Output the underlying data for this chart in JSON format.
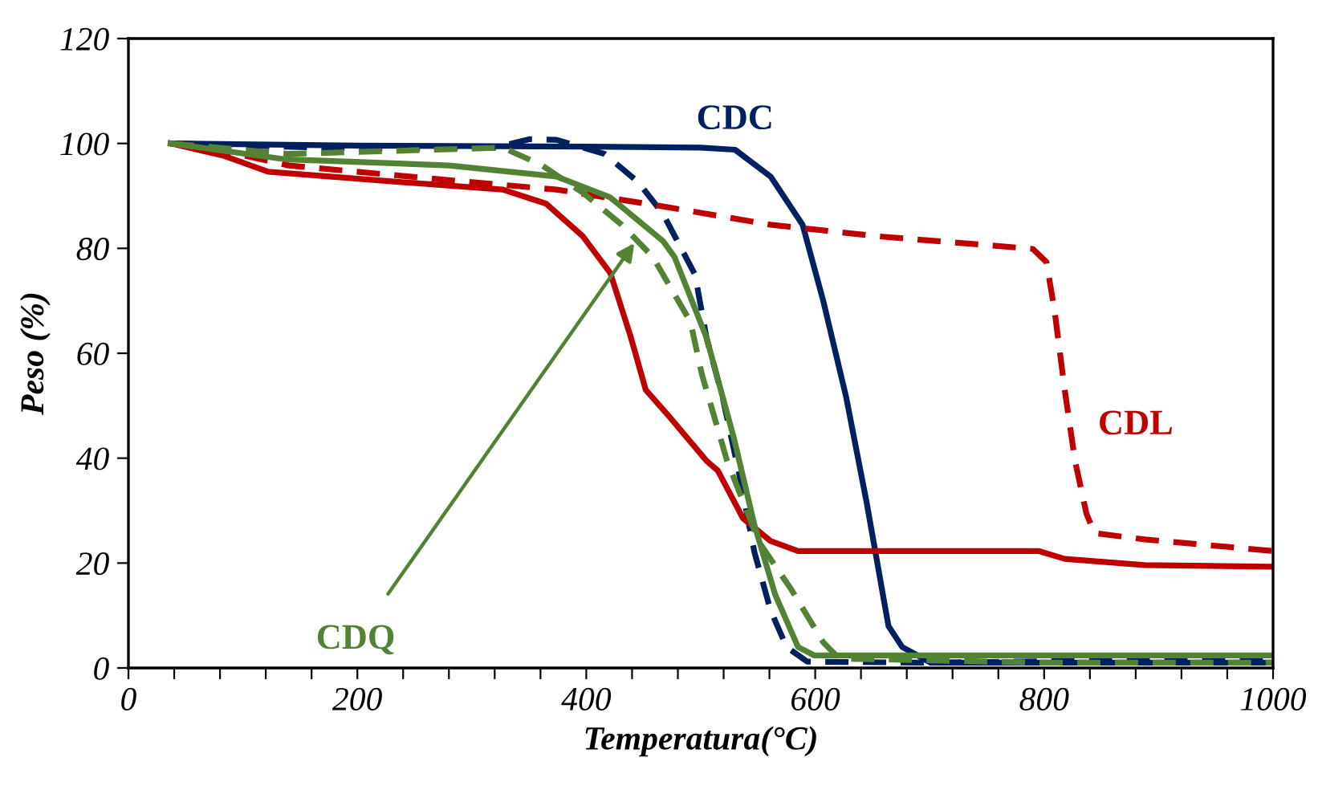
{
  "chart_data": {
    "type": "line",
    "xlabel": "Temperatura(°C)",
    "ylabel": "Peso (%)",
    "xlim": [
      0,
      1000
    ],
    "ylim": [
      0,
      120
    ],
    "xticks": [
      0,
      {
        "value": 40,
        "label": null
      },
      {
        "value": 80,
        "label": null
      },
      {
        "value": 120,
        "label": null
      },
      {
        "value": 160,
        "label": null
      },
      200,
      {
        "value": 240,
        "label": null
      },
      {
        "value": 280,
        "label": null
      },
      {
        "value": 320,
        "label": null
      },
      {
        "value": 360,
        "label": null
      },
      400,
      {
        "value": 440,
        "label": null
      },
      {
        "value": 480,
        "label": null
      },
      {
        "value": 520,
        "label": null
      },
      {
        "value": 560,
        "label": null
      },
      600,
      {
        "value": 640,
        "label": null
      },
      {
        "value": 680,
        "label": null
      },
      {
        "value": 720,
        "label": null
      },
      {
        "value": 760,
        "label": null
      },
      800,
      {
        "value": 840,
        "label": null
      },
      {
        "value": 880,
        "label": null
      },
      {
        "value": 920,
        "label": null
      },
      {
        "value": 960,
        "label": null
      },
      1000
    ],
    "yticks": [
      0,
      20,
      40,
      60,
      80,
      100,
      120
    ],
    "grid": false,
    "marker": "none",
    "series": [
      {
        "color": "#002060",
        "line_style": "solid",
        "x": [
          37,
          200,
          400,
          500,
          530,
          561,
          589,
          607,
          627,
          645,
          664,
          676,
          701,
          800,
          1000
        ],
        "values": [
          100,
          99.6,
          99.4,
          99.2,
          98.8,
          93.7,
          84.5,
          70,
          51.7,
          31.5,
          8,
          4,
          1,
          1,
          1
        ]
      },
      {
        "color": "#002060",
        "line_style": "dashed",
        "x": [
          37,
          200,
          320,
          350,
          374,
          416,
          445,
          467,
          495,
          505,
          519,
          533,
          547,
          561,
          575,
          593,
          700,
          1000
        ],
        "values": [
          100,
          99,
          99.2,
          100.8,
          100.7,
          98,
          92.7,
          86.6,
          75,
          63,
          51.7,
          37.6,
          22,
          11,
          4,
          1.2,
          1,
          1.8
        ]
      },
      {
        "color": "#c00000",
        "line_style": "solid",
        "x": [
          37,
          84,
          122,
          234,
          327,
          365,
          397,
          421,
          439,
          452,
          473,
          505,
          515,
          537,
          561,
          585,
          795,
          818,
          888,
          1000
        ],
        "values": [
          100,
          97.6,
          94.6,
          92.7,
          91.2,
          88.5,
          82.3,
          75.3,
          63,
          53,
          47.8,
          39.5,
          37.6,
          28.5,
          24.2,
          22.3,
          22.3,
          20.8,
          19.6,
          19.3
        ]
      },
      {
        "color": "#c00000",
        "line_style": "dashed",
        "x": [
          37,
          74,
          140,
          280,
          374,
          467,
          561,
          655,
          790,
          802,
          809,
          818,
          827,
          837,
          844,
          888,
          1000
        ],
        "values": [
          100,
          99,
          95.8,
          93,
          91.2,
          88,
          84.5,
          82.3,
          79.9,
          77.4,
          68.3,
          53,
          39.5,
          29.4,
          25.7,
          24.5,
          22.3
        ]
      },
      {
        "color": "#548235",
        "line_style": "solid",
        "x": [
          37,
          136,
          280,
          374,
          421,
          467,
          477,
          505,
          529,
          547,
          565,
          585,
          599,
          800,
          1000
        ],
        "values": [
          100,
          97,
          95.8,
          93.7,
          89.7,
          81.4,
          78.4,
          63,
          43.8,
          27.2,
          14,
          4,
          2.4,
          2.4,
          2.4
        ]
      },
      {
        "color": "#548235",
        "line_style": "dashed",
        "x": [
          37,
          140,
          327,
          360,
          397,
          431,
          458,
          491,
          501,
          523,
          551,
          579,
          607,
          621,
          800,
          1000
        ],
        "values": [
          100,
          98,
          99.2,
          96,
          90.6,
          84.5,
          78.4,
          66,
          56,
          39.5,
          24,
          15,
          4.9,
          1.8,
          1,
          1
        ]
      }
    ],
    "annotations": [
      "CDC",
      "CDL",
      {
        "text": "CDQ",
        "x": 442,
        "y": 81
      }
    ]
  }
}
